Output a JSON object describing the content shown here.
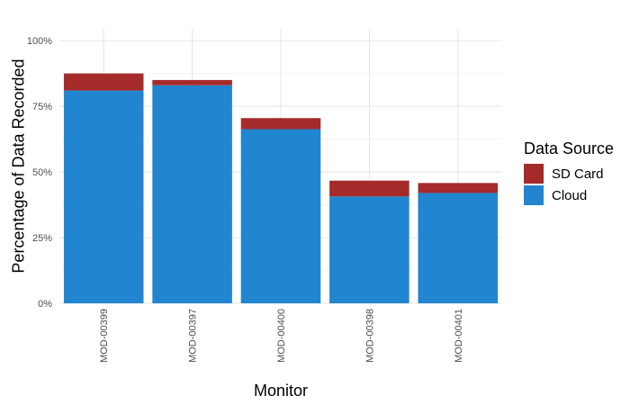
{
  "chart_data": {
    "type": "bar",
    "stacked": true,
    "title": "",
    "xlabel": "Monitor",
    "ylabel": "Percentage of Data Recorded",
    "categories": [
      "MOD-00399",
      "MOD-00397",
      "MOD-00400",
      "MOD-00398",
      "MOD-00401"
    ],
    "series": [
      {
        "name": "Cloud",
        "color": "#2185d0",
        "values": [
          81.0,
          83.0,
          66.3,
          40.7,
          42.0
        ]
      },
      {
        "name": "SD Card",
        "color": "#a52a2a",
        "values": [
          6.5,
          2.0,
          4.2,
          6.0,
          3.8
        ]
      }
    ],
    "ylim": [
      0,
      100
    ],
    "yticks": [
      0,
      25,
      50,
      75,
      100
    ],
    "ytick_labels": [
      "0%",
      "25%",
      "50%",
      "75%",
      "100%"
    ],
    "grid": true,
    "legend": {
      "title": "Data Source",
      "position": "right",
      "entries": [
        {
          "name": "SD Card",
          "color": "#a52a2a"
        },
        {
          "name": "Cloud",
          "color": "#2185d0"
        }
      ]
    },
    "x_tick_rotation": "vertical"
  }
}
